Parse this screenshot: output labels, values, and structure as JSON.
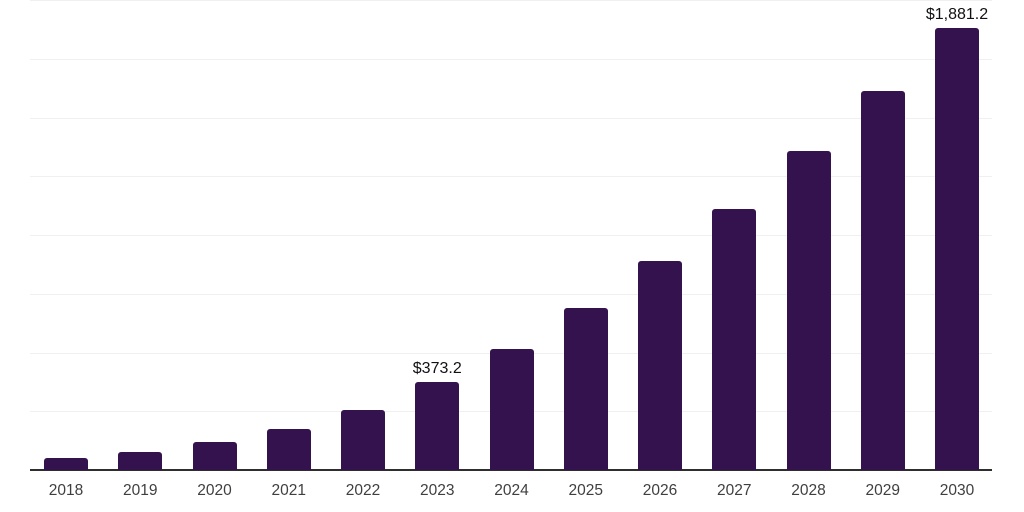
{
  "chart_data": {
    "type": "bar",
    "title": "",
    "xlabel": "",
    "ylabel": "",
    "categories": [
      "2018",
      "2019",
      "2020",
      "2021",
      "2022",
      "2023",
      "2024",
      "2025",
      "2026",
      "2027",
      "2028",
      "2029",
      "2030"
    ],
    "values": [
      52.4,
      75.3,
      117.6,
      176.0,
      254.0,
      373.2,
      516.5,
      691.0,
      890.5,
      1111.5,
      1358.5,
      1614.0,
      1881.2
    ],
    "annotations": [
      {
        "index": 5,
        "text": "$373.2"
      },
      {
        "index": 12,
        "text": "$1,881.2"
      }
    ],
    "ylim": [
      0,
      2000
    ],
    "gridline_step": 250,
    "grid": "horizontal only, no y-axis tick labels",
    "legend": "none",
    "bar_color": "#33124d",
    "gridline_color": "#f0f0f0",
    "axis_line_color": "#2e2e2e",
    "value_label_color": "#111111",
    "x_label_color": "#3f3f3f"
  }
}
